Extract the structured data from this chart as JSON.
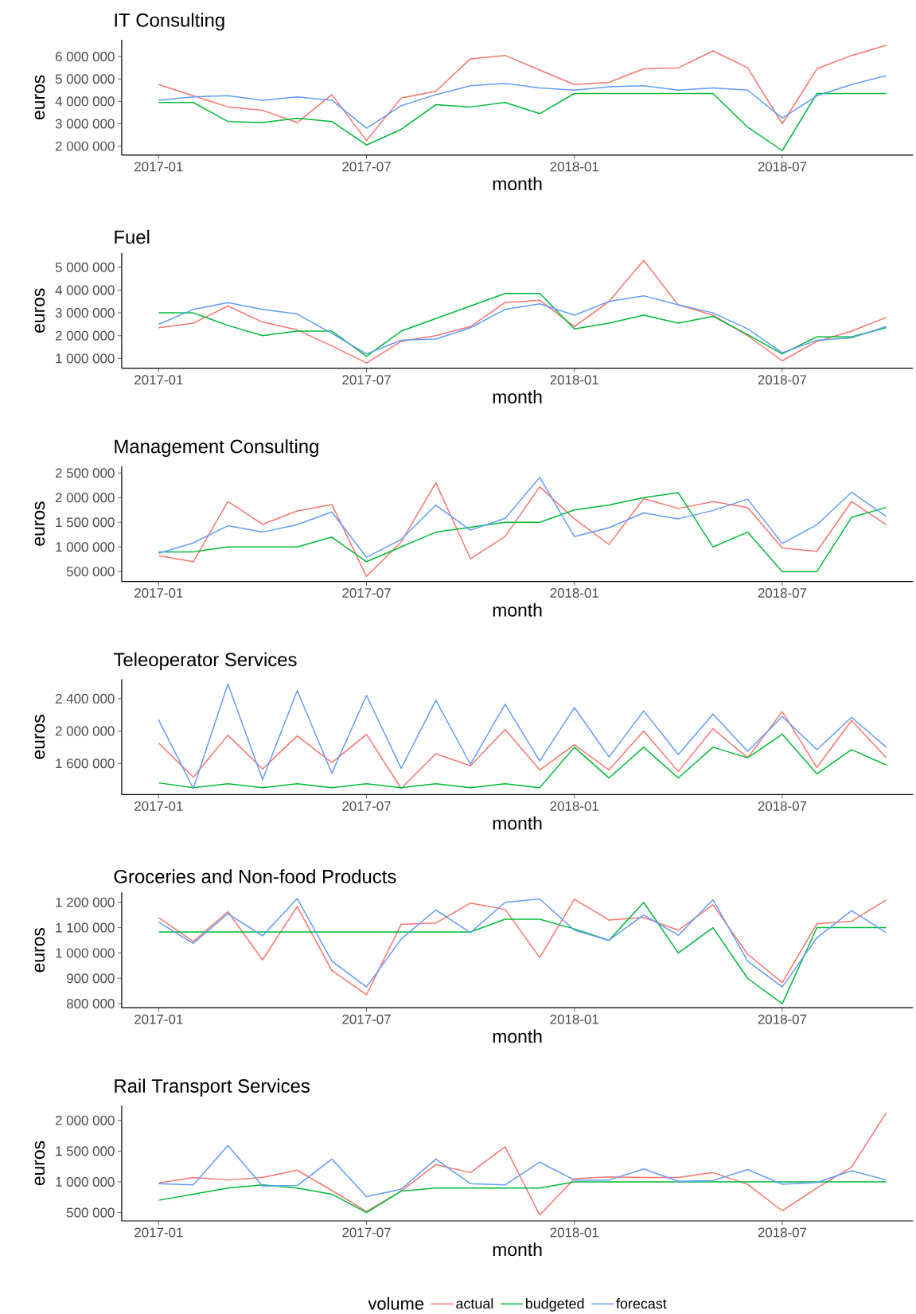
{
  "chart_data": [
    {
      "type": "line",
      "title": "IT Consulting",
      "xlabel": "month",
      "ylabel": "euros",
      "x": [
        "2017-01",
        "2017-02",
        "2017-03",
        "2017-04",
        "2017-05",
        "2017-06",
        "2017-07",
        "2017-08",
        "2017-09",
        "2017-10",
        "2017-11",
        "2017-12",
        "2018-01",
        "2018-02",
        "2018-03",
        "2018-04",
        "2018-05",
        "2018-06",
        "2018-07",
        "2018-08",
        "2018-09",
        "2018-10"
      ],
      "xlim": [
        "2016-11-29",
        "2018-10-25"
      ],
      "xticks": [
        "2017-01",
        "2017-07",
        "2018-01",
        "2018-07"
      ],
      "ylim": [
        1600000,
        6750000
      ],
      "yticks": [
        {
          "value": 2000000,
          "label": "2 000 000"
        },
        {
          "value": 3000000,
          "label": "3 000 000"
        },
        {
          "value": 4000000,
          "label": "4 000 000"
        },
        {
          "value": 5000000,
          "label": "5 000 000"
        },
        {
          "value": 6000000,
          "label": "6 000 000"
        }
      ],
      "series": [
        {
          "color": "#f8766d",
          "values": [
            4750000,
            4250000,
            3750000,
            3600000,
            3050000,
            4300000,
            2250000,
            4150000,
            4450000,
            5900000,
            6050000,
            5400000,
            4750000,
            4850000,
            5450000,
            5500000,
            6250000,
            5500000,
            3000000,
            5450000,
            6050000,
            6500000
          ]
        },
        {
          "color": "#00ba38",
          "values": [
            3950000,
            3950000,
            3100000,
            3050000,
            3250000,
            3100000,
            2050000,
            2750000,
            3850000,
            3750000,
            3950000,
            3450000,
            4350000,
            4350000,
            4350000,
            4350000,
            4350000,
            2850000,
            1800000,
            4350000,
            4350000,
            4350000
          ]
        },
        {
          "color": "#619cff",
          "values": [
            4050000,
            4200000,
            4250000,
            4050000,
            4200000,
            4050000,
            2800000,
            3800000,
            4300000,
            4700000,
            4800000,
            4600000,
            4500000,
            4650000,
            4700000,
            4500000,
            4600000,
            4500000,
            3250000,
            4250000,
            4750000,
            5150000
          ]
        }
      ]
    },
    {
      "type": "line",
      "title": "Fuel",
      "xlabel": "month",
      "ylabel": "euros",
      "x": [
        "2017-01",
        "2017-02",
        "2017-03",
        "2017-04",
        "2017-05",
        "2017-06",
        "2017-07",
        "2017-08",
        "2017-09",
        "2017-10",
        "2017-11",
        "2017-12",
        "2018-01",
        "2018-02",
        "2018-03",
        "2018-04",
        "2018-05",
        "2018-06",
        "2018-07",
        "2018-08",
        "2018-09",
        "2018-10"
      ],
      "xlim": [
        "2016-11-29",
        "2018-10-25"
      ],
      "xticks": [
        "2017-01",
        "2017-07",
        "2018-01",
        "2018-07"
      ],
      "ylim": [
        570000,
        5630000
      ],
      "yticks": [
        {
          "value": 1000000,
          "label": "1 000 000"
        },
        {
          "value": 2000000,
          "label": "2 000 000"
        },
        {
          "value": 3000000,
          "label": "3 000 000"
        },
        {
          "value": 4000000,
          "label": "4 000 000"
        },
        {
          "value": 5000000,
          "label": "5 000 000"
        }
      ],
      "series": [
        {
          "color": "#f8766d",
          "values": [
            2350000,
            2550000,
            3300000,
            2600000,
            2250000,
            1550000,
            800000,
            1750000,
            2000000,
            2400000,
            3450000,
            3550000,
            2400000,
            3500000,
            5300000,
            3350000,
            2900000,
            2000000,
            900000,
            1750000,
            2200000,
            2800000
          ]
        },
        {
          "color": "#00ba38",
          "values": [
            3000000,
            3000000,
            2450000,
            2000000,
            2200000,
            2200000,
            1100000,
            2200000,
            2750000,
            3300000,
            3850000,
            3850000,
            2300000,
            2550000,
            2900000,
            2550000,
            2850000,
            2050000,
            1200000,
            1950000,
            1950000,
            2350000
          ]
        },
        {
          "color": "#619cff",
          "values": [
            2500000,
            3150000,
            3450000,
            3150000,
            2950000,
            2100000,
            1200000,
            1800000,
            1850000,
            2350000,
            3150000,
            3400000,
            2900000,
            3500000,
            3750000,
            3350000,
            3000000,
            2300000,
            1250000,
            1800000,
            1900000,
            2400000
          ]
        }
      ]
    },
    {
      "type": "line",
      "title": "Management Consulting",
      "xlabel": "month",
      "ylabel": "euros",
      "x": [
        "2017-01",
        "2017-02",
        "2017-03",
        "2017-04",
        "2017-05",
        "2017-06",
        "2017-07",
        "2017-08",
        "2017-09",
        "2017-10",
        "2017-11",
        "2017-12",
        "2018-01",
        "2018-02",
        "2018-03",
        "2018-04",
        "2018-05",
        "2018-06",
        "2018-07",
        "2018-08",
        "2018-09",
        "2018-10"
      ],
      "xlim": [
        "2016-11-29",
        "2018-10-25"
      ],
      "xticks": [
        "2017-01",
        "2017-07",
        "2018-01",
        "2018-07"
      ],
      "ylim": [
        300000,
        2640000
      ],
      "yticks": [
        {
          "value": 500000,
          "label": "500 000"
        },
        {
          "value": 1000000,
          "label": "1 000 000"
        },
        {
          "value": 1500000,
          "label": "1 500 000"
        },
        {
          "value": 2000000,
          "label": "2 000 000"
        },
        {
          "value": 2500000,
          "label": "2 500 000"
        }
      ],
      "series": [
        {
          "color": "#f8766d",
          "values": [
            820000,
            700000,
            1920000,
            1460000,
            1730000,
            1860000,
            400000,
            1100000,
            2300000,
            760000,
            1210000,
            2220000,
            1570000,
            1050000,
            1980000,
            1780000,
            1920000,
            1800000,
            980000,
            910000,
            1920000,
            1450000
          ]
        },
        {
          "color": "#00ba38",
          "values": [
            900000,
            900000,
            1000000,
            1000000,
            1000000,
            1200000,
            700000,
            1000000,
            1300000,
            1400000,
            1500000,
            1500000,
            1750000,
            1850000,
            2000000,
            2100000,
            1000000,
            1300000,
            500000,
            500000,
            1600000,
            1800000
          ]
        },
        {
          "color": "#619cff",
          "values": [
            870000,
            1080000,
            1430000,
            1300000,
            1450000,
            1710000,
            790000,
            1150000,
            1850000,
            1340000,
            1580000,
            2410000,
            1210000,
            1390000,
            1690000,
            1570000,
            1740000,
            1970000,
            1070000,
            1450000,
            2110000,
            1620000
          ]
        }
      ]
    },
    {
      "type": "line",
      "title": "Teleoperator Services",
      "xlabel": "month",
      "ylabel": "euros",
      "x": [
        "2017-01",
        "2017-02",
        "2017-03",
        "2017-04",
        "2017-05",
        "2017-06",
        "2017-07",
        "2017-08",
        "2017-09",
        "2017-10",
        "2017-11",
        "2017-12",
        "2018-01",
        "2018-02",
        "2018-03",
        "2018-04",
        "2018-05",
        "2018-06",
        "2018-07",
        "2018-08",
        "2018-09",
        "2018-10"
      ],
      "xlim": [
        "2016-11-29",
        "2018-10-25"
      ],
      "xticks": [
        "2017-01",
        "2017-07",
        "2018-01",
        "2018-07"
      ],
      "ylim": [
        1215000,
        2640000
      ],
      "yticks": [
        {
          "value": 1600000,
          "label": "1 600 000"
        },
        {
          "value": 2000000,
          "label": "2 000 000"
        },
        {
          "value": 2400000,
          "label": "2 400 000"
        }
      ],
      "series": [
        {
          "color": "#f8766d",
          "values": [
            1850000,
            1430000,
            1950000,
            1530000,
            1940000,
            1610000,
            1960000,
            1290000,
            1720000,
            1570000,
            2020000,
            1520000,
            1830000,
            1520000,
            2000000,
            1500000,
            2030000,
            1670000,
            2240000,
            1550000,
            2130000,
            1670000
          ]
        },
        {
          "color": "#00ba38",
          "values": [
            1360000,
            1300000,
            1350000,
            1300000,
            1350000,
            1300000,
            1350000,
            1300000,
            1350000,
            1300000,
            1350000,
            1300000,
            1800000,
            1420000,
            1800000,
            1420000,
            1800000,
            1670000,
            1960000,
            1470000,
            1770000,
            1580000
          ]
        },
        {
          "color": "#619cff",
          "values": [
            2140000,
            1290000,
            2580000,
            1400000,
            2500000,
            1480000,
            2440000,
            1540000,
            2380000,
            1590000,
            2330000,
            1630000,
            2290000,
            1680000,
            2250000,
            1710000,
            2210000,
            1750000,
            2180000,
            1770000,
            2170000,
            1800000
          ]
        }
      ]
    },
    {
      "type": "line",
      "title": "Groceries and Non-food Products",
      "xlabel": "month",
      "ylabel": "euros",
      "x": [
        "2017-01",
        "2017-02",
        "2017-03",
        "2017-04",
        "2017-05",
        "2017-06",
        "2017-07",
        "2017-08",
        "2017-09",
        "2017-10",
        "2017-11",
        "2017-12",
        "2018-01",
        "2018-02",
        "2018-03",
        "2018-04",
        "2018-05",
        "2018-06",
        "2018-07",
        "2018-08",
        "2018-09",
        "2018-10"
      ],
      "xlim": [
        "2016-11-29",
        "2018-10-25"
      ],
      "xticks": [
        "2017-01",
        "2017-07",
        "2018-01",
        "2018-07"
      ],
      "ylim": [
        784000,
        1239000
      ],
      "yticks": [
        {
          "value": 800000,
          "label": "800 000"
        },
        {
          "value": 900000,
          "label": "900 000"
        },
        {
          "value": 1000000,
          "label": "1 000 000"
        },
        {
          "value": 1100000,
          "label": "1 100 000"
        },
        {
          "value": 1200000,
          "label": "1 200 000"
        }
      ],
      "series": [
        {
          "color": "#f8766d",
          "values": [
            1140000,
            1045000,
            1163000,
            973000,
            1183000,
            931000,
            835000,
            1113000,
            1118000,
            1197000,
            1172000,
            982000,
            1212000,
            1130000,
            1140000,
            1090000,
            1190000,
            995000,
            883000,
            1115000,
            1125000,
            1210000
          ]
        },
        {
          "color": "#00ba38",
          "values": [
            1083000,
            1083000,
            1083000,
            1083000,
            1083000,
            1083000,
            1083000,
            1083000,
            1083000,
            1083000,
            1133000,
            1133000,
            1095000,
            1050000,
            1200000,
            1000000,
            1100000,
            900000,
            800000,
            1100000,
            1100000,
            1100000
          ]
        },
        {
          "color": "#619cff",
          "values": [
            1122000,
            1038000,
            1155000,
            1068000,
            1215000,
            968000,
            866000,
            1055000,
            1170000,
            1080000,
            1200000,
            1213000,
            1090000,
            1050000,
            1150000,
            1070000,
            1210000,
            968000,
            866000,
            1060000,
            1167000,
            1080000
          ]
        }
      ]
    },
    {
      "type": "line",
      "title": "Rail Transport Services",
      "xlabel": "month",
      "ylabel": "euros",
      "legend": "bottom",
      "legend_title": "volume",
      "x": [
        "2017-01",
        "2017-02",
        "2017-03",
        "2017-04",
        "2017-05",
        "2017-06",
        "2017-07",
        "2017-08",
        "2017-09",
        "2017-10",
        "2017-11",
        "2017-12",
        "2018-01",
        "2018-02",
        "2018-03",
        "2018-04",
        "2018-05",
        "2018-06",
        "2018-07",
        "2018-08",
        "2018-09",
        "2018-10"
      ],
      "xlim": [
        "2016-11-29",
        "2018-10-25"
      ],
      "xticks": [
        "2017-01",
        "2017-07",
        "2018-01",
        "2018-07"
      ],
      "ylim": [
        365000,
        2240000
      ],
      "yticks": [
        {
          "value": 500000,
          "label": "500 000"
        },
        {
          "value": 1000000,
          "label": "1 000 000"
        },
        {
          "value": 1500000,
          "label": "1 500 000"
        },
        {
          "value": 2000000,
          "label": "2 000 000"
        }
      ],
      "series": [
        {
          "name": "actual",
          "color": "#f8766d",
          "values": [
            980000,
            1070000,
            1030000,
            1070000,
            1190000,
            860000,
            520000,
            850000,
            1280000,
            1150000,
            1570000,
            460000,
            1050000,
            1080000,
            1070000,
            1070000,
            1150000,
            960000,
            530000,
            900000,
            1240000,
            2120000
          ]
        },
        {
          "name": "budgeted",
          "color": "#00ba38",
          "values": [
            700000,
            800000,
            900000,
            950000,
            900000,
            800000,
            500000,
            850000,
            900000,
            900000,
            900000,
            900000,
            1000000,
            1000000,
            1000000,
            1000000,
            1000000,
            1000000,
            1000000,
            1000000,
            1000000,
            1000000
          ]
        },
        {
          "name": "forecast",
          "color": "#619cff",
          "values": [
            970000,
            950000,
            1590000,
            930000,
            940000,
            1370000,
            760000,
            880000,
            1370000,
            970000,
            950000,
            1320000,
            1030000,
            1030000,
            1210000,
            1010000,
            1020000,
            1200000,
            960000,
            990000,
            1180000,
            1030000
          ]
        }
      ]
    }
  ]
}
